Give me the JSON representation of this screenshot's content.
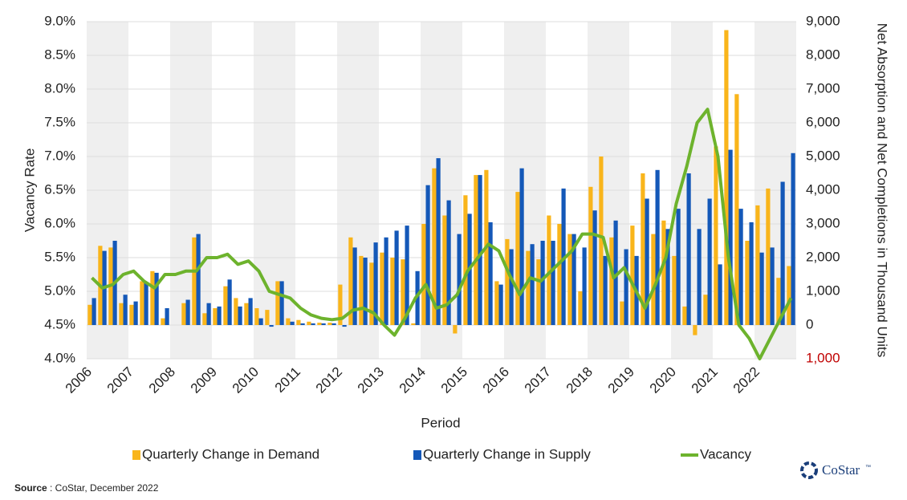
{
  "chart_data": {
    "type": "bar-line",
    "x_label": "Period",
    "y_label": "Vacancy Rate",
    "y2_label": "Net Absorption and Net Completions in Thousand Units",
    "categories": [
      "2006",
      null,
      null,
      null,
      "2007",
      null,
      null,
      null,
      "2008",
      null,
      null,
      null,
      "2009",
      null,
      null,
      null,
      "2010",
      null,
      null,
      null,
      "2011",
      null,
      null,
      null,
      "2012",
      null,
      null,
      null,
      "2013",
      null,
      null,
      null,
      "2014",
      null,
      null,
      null,
      "2015",
      null,
      null,
      null,
      "2016",
      null,
      null,
      null,
      "2017",
      null,
      null,
      null,
      "2018",
      null,
      null,
      null,
      "2019",
      null,
      null,
      null,
      "2020",
      null,
      null,
      null,
      "2021",
      null,
      null,
      null,
      "2022",
      null,
      null,
      null
    ],
    "ylim": [
      4.0,
      9.0
    ],
    "yticks": [
      {
        "value": 4.0,
        "label": "4.0%"
      },
      {
        "value": 4.5,
        "label": "4.5%"
      },
      {
        "value": 5.0,
        "label": "5.0%"
      },
      {
        "value": 5.5,
        "label": "5.5%"
      },
      {
        "value": 6.0,
        "label": "6.0%"
      },
      {
        "value": 6.5,
        "label": "6.5%"
      },
      {
        "value": 7.0,
        "label": "7.0%"
      },
      {
        "value": 7.5,
        "label": "7.5%"
      },
      {
        "value": 8.0,
        "label": "8.0%"
      },
      {
        "value": 8.5,
        "label": "8.5%"
      },
      {
        "value": 9.0,
        "label": "9.0%"
      }
    ],
    "y2lim": [
      -1000,
      9000
    ],
    "y2ticks": [
      {
        "value": -1000,
        "label": "1,000",
        "color": "#c00000"
      },
      0,
      {
        "value": 1000,
        "label": "1,000"
      },
      {
        "value": 2000,
        "label": "2,000"
      },
      {
        "value": 3000,
        "label": "3,000"
      },
      {
        "value": 4000,
        "label": "4,000"
      },
      {
        "value": 5000,
        "label": "5,000"
      },
      {
        "value": 6000,
        "label": "6,000"
      },
      {
        "value": 7000,
        "label": "7,000"
      },
      {
        "value": 8000,
        "label": "8,000"
      },
      {
        "value": 9000,
        "label": "9,000"
      }
    ],
    "grid": true,
    "year_bands": true,
    "legend": "bottom",
    "series": [
      {
        "name": "Quarterly Change in Demand",
        "type": "bar",
        "axis": "y2",
        "color": "#f9b51b",
        "values": [
          600,
          2350,
          2300,
          650,
          600,
          1300,
          1600,
          200,
          0,
          650,
          2600,
          350,
          500,
          1150,
          800,
          650,
          500,
          450,
          1300,
          200,
          150,
          100,
          70,
          70,
          1200,
          2600,
          2050,
          1850,
          2150,
          2000,
          1950,
          50,
          3000,
          4650,
          3250,
          -250,
          3850,
          4450,
          4600,
          1300,
          2550,
          3950,
          2200,
          1950,
          3250,
          3000,
          2700,
          1000,
          4100,
          5000,
          2600,
          700,
          2950,
          4500,
          2700,
          3100,
          2050,
          550,
          -300,
          900,
          5300,
          8750,
          6850,
          2500,
          3550,
          4050,
          1400,
          1750
        ]
      },
      {
        "name": "Quarterly Change in Supply",
        "type": "bar",
        "axis": "y2",
        "color": "#1458b8",
        "values": [
          800,
          2200,
          2500,
          900,
          700,
          1250,
          1550,
          500,
          0,
          750,
          2700,
          650,
          550,
          1350,
          550,
          800,
          200,
          -50,
          1300,
          100,
          50,
          50,
          50,
          50,
          -50,
          2300,
          2000,
          2450,
          2600,
          2800,
          2950,
          1600,
          4150,
          4950,
          3700,
          2700,
          3300,
          4450,
          3050,
          1200,
          2250,
          4650,
          2400,
          2500,
          2500,
          4050,
          2700,
          2300,
          3400,
          2050,
          3100,
          2250,
          2050,
          3750,
          4600,
          2850,
          3450,
          4500,
          2850,
          3750,
          1800,
          5200,
          3450,
          3050,
          2150,
          2300,
          4250,
          5100
        ]
      },
      {
        "name": "Vacancy",
        "type": "line",
        "axis": "y",
        "color": "#6db32d",
        "values": [
          5.2,
          5.05,
          5.1,
          5.25,
          5.3,
          5.15,
          5.05,
          5.25,
          5.25,
          5.3,
          5.3,
          5.5,
          5.5,
          5.55,
          5.4,
          5.45,
          5.3,
          5.0,
          4.95,
          4.9,
          4.75,
          4.65,
          4.6,
          4.58,
          4.6,
          4.72,
          4.75,
          4.68,
          4.5,
          4.35,
          4.6,
          4.9,
          5.1,
          4.75,
          4.8,
          4.95,
          5.3,
          5.5,
          5.7,
          5.6,
          5.25,
          4.95,
          5.2,
          5.15,
          5.3,
          5.45,
          5.6,
          5.85,
          5.85,
          5.8,
          5.2,
          5.35,
          5.05,
          4.75,
          5.1,
          5.5,
          6.3,
          6.85,
          7.5,
          7.7,
          7.0,
          5.5,
          4.5,
          4.3,
          4.0,
          4.3,
          4.6,
          4.9
        ]
      }
    ]
  },
  "source_label": "Source",
  "source_text": ": CoStar, December 2022",
  "logo": "CoStar",
  "logo_mark": "™"
}
